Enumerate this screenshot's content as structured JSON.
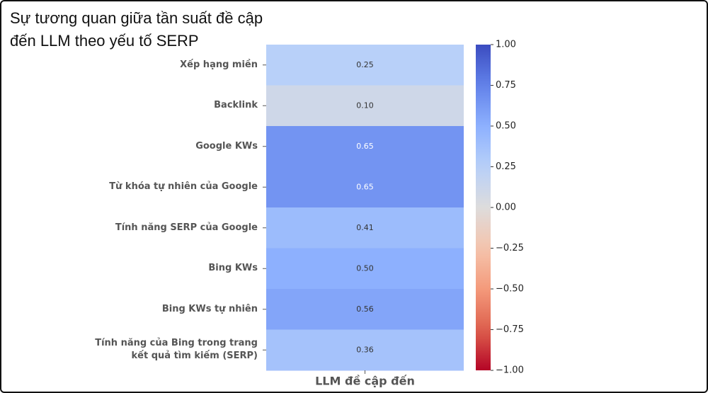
{
  "chart_data": {
    "type": "heatmap",
    "title": "Sự tương quan giữa tần suất đề cập đến LLM theo yếu tố SERP",
    "categories": [
      "Xếp hạng miền",
      "Backlink",
      "Google KWs",
      "Từ khóa tự nhiên của Google",
      "Tính năng SERP của Google",
      "Bing KWs",
      "Bing KWs tự nhiên",
      "Tính năng của Bing trong trang kết quả tìm kiếm (SERP)"
    ],
    "columns": [
      "LLM đề cập đến"
    ],
    "values": [
      0.25,
      0.1,
      0.65,
      0.65,
      0.41,
      0.5,
      0.56,
      0.36
    ],
    "value_labels": [
      "0.25",
      "0.10",
      "0.65",
      "0.65",
      "0.41",
      "0.50",
      "0.56",
      "0.36"
    ],
    "colormap": "coolwarm_r",
    "clim": [
      -1,
      1
    ],
    "cticks": [
      {
        "value": 1,
        "label": "1.00"
      },
      {
        "value": 0.75,
        "label": "0.75"
      },
      {
        "value": 0.5,
        "label": "0.50"
      },
      {
        "value": 0.25,
        "label": "0.25"
      },
      {
        "value": 0,
        "label": "0.00"
      },
      {
        "value": -0.25,
        "label": "−0.25"
      },
      {
        "value": -0.5,
        "label": "−0.50"
      },
      {
        "value": -0.75,
        "label": "−0.75"
      },
      {
        "value": -1,
        "label": "−1.00"
      }
    ]
  }
}
